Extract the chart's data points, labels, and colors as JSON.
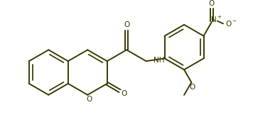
{
  "bg_color": "#ffffff",
  "line_color": "#3a3a00",
  "line_width": 1.4,
  "figsize": [
    3.94,
    1.96
  ],
  "dpi": 100,
  "xlim": [
    0,
    10
  ],
  "ylim": [
    0,
    5
  ]
}
